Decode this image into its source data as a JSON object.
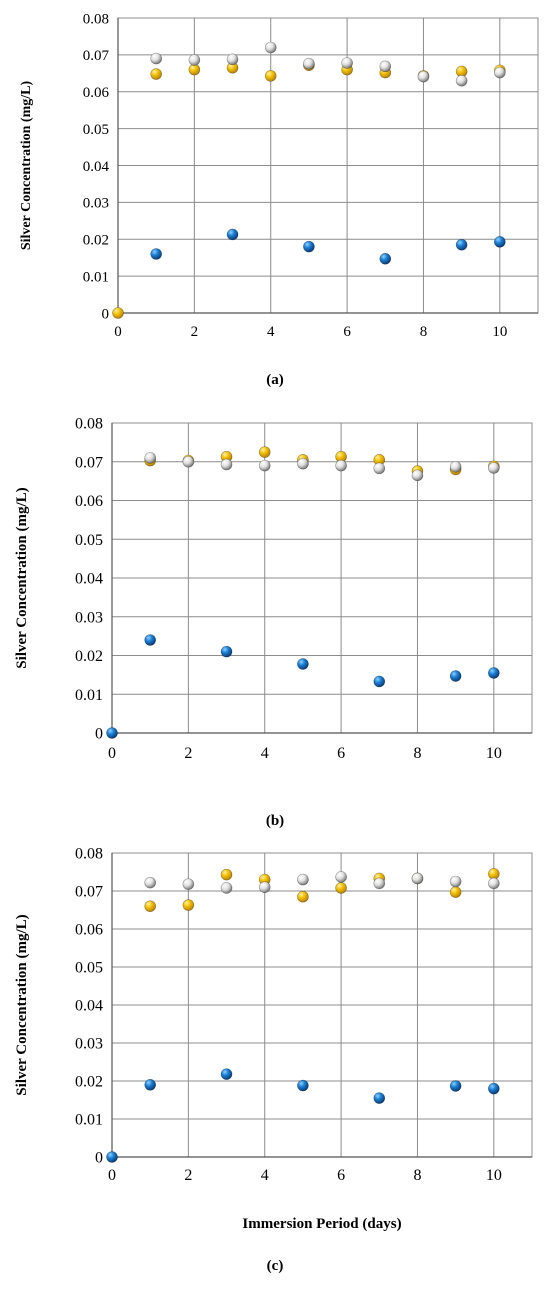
{
  "chart_data": [
    {
      "type": "scatter",
      "title": "",
      "panel_label": "(a)",
      "xlabel": "",
      "ylabel": "Silver Concentration (mg/L)",
      "xlim": [
        0,
        11
      ],
      "ylim": [
        0,
        0.08
      ],
      "xticks": [
        "0",
        "2",
        "4",
        "6",
        "8",
        "10"
      ],
      "yticks": [
        "0",
        "0.01",
        "0.02",
        "0.03",
        "0.04",
        "0.05",
        "0.06",
        "0.07",
        "0.08"
      ],
      "grid": true,
      "legend": "none",
      "series": [
        {
          "color": "#F0B400",
          "x": [
            0,
            1,
            2,
            3,
            4,
            5,
            6,
            7,
            8,
            9,
            10
          ],
          "y": [
            0,
            0.0648,
            0.066,
            0.0665,
            0.0643,
            0.0672,
            0.066,
            0.0652,
            0.0643,
            0.0655,
            0.0658
          ]
        },
        {
          "color": "#C8C8C8",
          "x": [
            1,
            2,
            3,
            4,
            5,
            6,
            7,
            8,
            9,
            10
          ],
          "y": [
            0.069,
            0.0686,
            0.0688,
            0.072,
            0.0676,
            0.0678,
            0.0669,
            0.0641,
            0.063,
            0.0652
          ]
        },
        {
          "color": "#1A6FC2",
          "x": [
            1,
            3,
            5,
            7,
            9,
            10
          ],
          "y": [
            0.016,
            0.0213,
            0.018,
            0.0147,
            0.0185,
            0.0193
          ]
        }
      ]
    },
    {
      "type": "scatter",
      "title": "",
      "panel_label": "(b)",
      "xlabel": "",
      "ylabel": "Silver Concentration (mg/L)",
      "xlim": [
        0,
        11
      ],
      "ylim": [
        0,
        0.08
      ],
      "xticks": [
        "0",
        "2",
        "4",
        "6",
        "8",
        "10"
      ],
      "yticks": [
        "0",
        "0.01",
        "0.02",
        "0.03",
        "0.04",
        "0.05",
        "0.06",
        "0.07",
        "0.08"
      ],
      "grid": true,
      "legend": "none",
      "series": [
        {
          "color": "#F0B400",
          "x": [
            1,
            2,
            3,
            4,
            5,
            6,
            7,
            8,
            9,
            10
          ],
          "y": [
            0.0703,
            0.0703,
            0.0713,
            0.0725,
            0.0705,
            0.0713,
            0.0705,
            0.0676,
            0.068,
            0.0688
          ]
        },
        {
          "color": "#C8C8C8",
          "x": [
            1,
            2,
            3,
            4,
            5,
            6,
            7,
            8,
            9,
            10
          ],
          "y": [
            0.071,
            0.07,
            0.0693,
            0.069,
            0.0695,
            0.069,
            0.0683,
            0.0665,
            0.0687,
            0.0684
          ]
        },
        {
          "color": "#1A6FC2",
          "x": [
            0,
            1,
            3,
            5,
            7,
            9,
            10
          ],
          "y": [
            0,
            0.024,
            0.021,
            0.0178,
            0.0133,
            0.0147,
            0.0155
          ]
        }
      ]
    },
    {
      "type": "scatter",
      "title": "",
      "panel_label": "(c)",
      "xlabel": "Immersion Period (days)",
      "ylabel": "Silver Concentration (mg/L)",
      "xlim": [
        0,
        11
      ],
      "ylim": [
        0,
        0.08
      ],
      "xticks": [
        "0",
        "2",
        "4",
        "6",
        "8",
        "10"
      ],
      "yticks": [
        "0",
        "0.01",
        "0.02",
        "0.03",
        "0.04",
        "0.05",
        "0.06",
        "0.07",
        "0.08"
      ],
      "grid": true,
      "legend": "none",
      "series": [
        {
          "color": "#F0B400",
          "x": [
            1,
            2,
            3,
            4,
            5,
            6,
            7,
            8,
            9,
            10
          ],
          "y": [
            0.066,
            0.0663,
            0.0743,
            0.073,
            0.0685,
            0.0708,
            0.0733,
            0.0733,
            0.0697,
            0.0745
          ]
        },
        {
          "color": "#C8C8C8",
          "x": [
            1,
            2,
            3,
            4,
            5,
            6,
            7,
            8,
            9,
            10
          ],
          "y": [
            0.0722,
            0.0718,
            0.0708,
            0.071,
            0.073,
            0.0737,
            0.072,
            0.0733,
            0.0725,
            0.072
          ]
        },
        {
          "color": "#1A6FC2",
          "x": [
            0,
            1,
            3,
            5,
            7,
            9,
            10
          ],
          "y": [
            0,
            0.019,
            0.0218,
            0.0188,
            0.0155,
            0.0187,
            0.018
          ]
        }
      ]
    }
  ]
}
